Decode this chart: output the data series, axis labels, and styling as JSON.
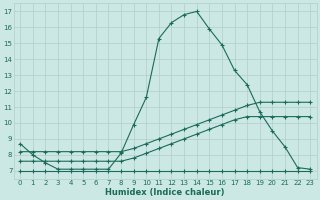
{
  "xlabel": "Humidex (Indice chaleur)",
  "bg_color": "#cce8e4",
  "line_color": "#1a6b5a",
  "grid_color": "#b0cccc",
  "xlim": [
    -0.5,
    23.5
  ],
  "ylim": [
    6.5,
    17.5
  ],
  "yticks": [
    7,
    8,
    9,
    10,
    11,
    12,
    13,
    14,
    15,
    16,
    17
  ],
  "xticks": [
    0,
    1,
    2,
    3,
    4,
    5,
    6,
    7,
    8,
    9,
    10,
    11,
    12,
    13,
    14,
    15,
    16,
    17,
    18,
    19,
    20,
    21,
    22,
    23
  ],
  "line1_x": [
    0,
    1,
    2,
    3,
    4,
    5,
    6,
    7,
    8,
    9,
    10,
    11,
    12,
    13,
    14,
    15,
    16,
    17,
    18,
    19,
    20,
    21,
    22,
    23
  ],
  "line1_y": [
    8.7,
    8.0,
    7.5,
    7.1,
    7.1,
    7.1,
    7.1,
    7.1,
    8.1,
    9.9,
    11.6,
    15.3,
    16.3,
    16.8,
    17.0,
    15.9,
    14.9,
    13.3,
    12.4,
    10.7,
    9.5,
    8.5,
    7.2,
    7.1
  ],
  "line2_x": [
    0,
    1,
    2,
    3,
    4,
    5,
    6,
    7,
    8,
    9,
    10,
    11,
    12,
    13,
    14,
    15,
    16,
    17,
    18,
    19,
    20,
    21,
    22,
    23
  ],
  "line2_y": [
    8.2,
    8.2,
    8.2,
    8.2,
    8.2,
    8.2,
    8.2,
    8.2,
    8.2,
    8.4,
    8.7,
    9.0,
    9.3,
    9.6,
    9.9,
    10.2,
    10.5,
    10.8,
    11.1,
    11.3,
    11.3,
    11.3,
    11.3,
    11.3
  ],
  "line3_x": [
    0,
    1,
    2,
    3,
    4,
    5,
    6,
    7,
    8,
    9,
    10,
    11,
    12,
    13,
    14,
    15,
    16,
    17,
    18,
    19,
    20,
    21,
    22,
    23
  ],
  "line3_y": [
    7.6,
    7.6,
    7.6,
    7.6,
    7.6,
    7.6,
    7.6,
    7.6,
    7.6,
    7.8,
    8.1,
    8.4,
    8.7,
    9.0,
    9.3,
    9.6,
    9.9,
    10.2,
    10.4,
    10.4,
    10.4,
    10.4,
    10.4,
    10.4
  ],
  "line4_x": [
    0,
    1,
    2,
    3,
    4,
    5,
    6,
    7,
    8,
    9,
    10,
    11,
    12,
    13,
    14,
    15,
    16,
    17,
    18,
    19,
    20,
    21,
    22,
    23
  ],
  "line4_y": [
    7.0,
    7.0,
    7.0,
    7.0,
    7.0,
    7.0,
    7.0,
    7.0,
    7.0,
    7.0,
    7.0,
    7.0,
    7.0,
    7.0,
    7.0,
    7.0,
    7.0,
    7.0,
    7.0,
    7.0,
    7.0,
    7.0,
    7.0,
    7.0
  ]
}
